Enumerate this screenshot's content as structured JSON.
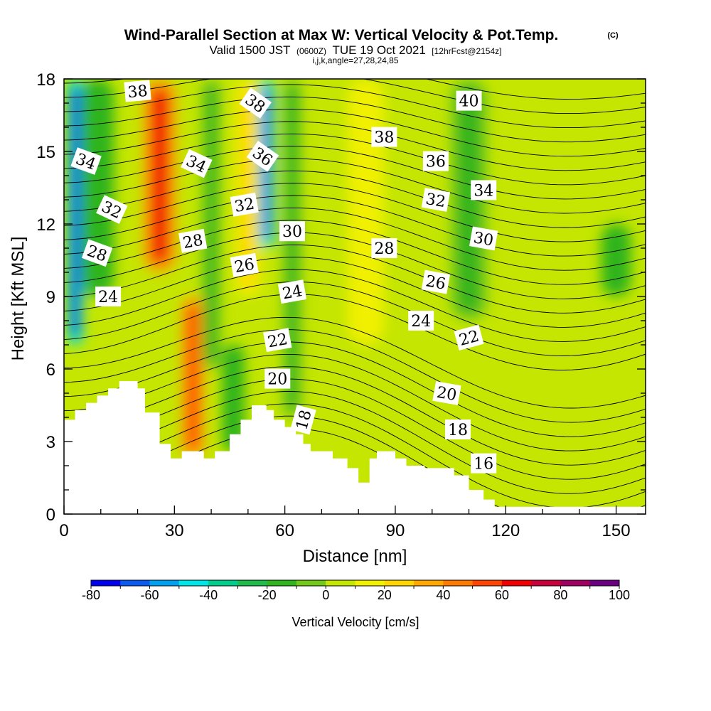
{
  "chart_data": {
    "type": "heatmap",
    "title": "Wind-Parallel Section at Max W: Vertical Velocity & Pot.Temp.",
    "title_mark": "(C)",
    "subtitle": {
      "prefix": "Valid 1500 JST",
      "zulu": "(0600Z)",
      "date": "TUE 19 Oct 2021",
      "fcst": "[12hrFcst@2154z]"
    },
    "subtitle2": "i,j,k,angle=27,28,24,85",
    "xlabel": "Distance [nm]",
    "ylabel": "Height [Kft MSL]",
    "xlim": [
      0,
      158
    ],
    "ylim": [
      0,
      18
    ],
    "x_ticks": [
      "0",
      "30",
      "60",
      "90",
      "120",
      "150"
    ],
    "y_ticks": [
      "0",
      "3",
      "6",
      "9",
      "12",
      "15",
      "18"
    ],
    "colorbar": {
      "label": "Vertical Velocity [cm/s]",
      "ticks": [
        "-80",
        "-60",
        "-40",
        "-20",
        "0",
        "20",
        "40",
        "60",
        "80",
        "100"
      ],
      "colors": [
        "#0000ee",
        "#0a5af0",
        "#00a0f0",
        "#00e6e6",
        "#00cc8c",
        "#1fbc4c",
        "#2fb41e",
        "#73c81a",
        "#c4e600",
        "#f0f000",
        "#ffd700",
        "#ffa800",
        "#ff7a00",
        "#ff4500",
        "#f00000",
        "#c8003c",
        "#a00060",
        "#6a0080"
      ]
    },
    "background_velocity": 2,
    "terrain_kft": [
      [
        0,
        3.9
      ],
      [
        3,
        3.9
      ],
      [
        3,
        4.3
      ],
      [
        6,
        4.3
      ],
      [
        6,
        4.6
      ],
      [
        9,
        4.6
      ],
      [
        9,
        4.9
      ],
      [
        12,
        4.9
      ],
      [
        12,
        5.2
      ],
      [
        15,
        5.2
      ],
      [
        15,
        5.5
      ],
      [
        20,
        5.5
      ],
      [
        20,
        5.2
      ],
      [
        22,
        5.2
      ],
      [
        22,
        4.2
      ],
      [
        26,
        4.2
      ],
      [
        26,
        2.9
      ],
      [
        29,
        2.9
      ],
      [
        29,
        2.3
      ],
      [
        32,
        2.3
      ],
      [
        32,
        2.6
      ],
      [
        38,
        2.6
      ],
      [
        38,
        2.3
      ],
      [
        41,
        2.3
      ],
      [
        41,
        2.6
      ],
      [
        45,
        2.6
      ],
      [
        45,
        3.3
      ],
      [
        48,
        3.3
      ],
      [
        48,
        3.9
      ],
      [
        51,
        3.9
      ],
      [
        51,
        4.5
      ],
      [
        55,
        4.5
      ],
      [
        55,
        4.3
      ],
      [
        57,
        4.3
      ],
      [
        57,
        3.9
      ],
      [
        60,
        3.9
      ],
      [
        60,
        3.6
      ],
      [
        63,
        3.6
      ],
      [
        63,
        3.3
      ],
      [
        65,
        3.3
      ],
      [
        65,
        2.9
      ],
      [
        67,
        2.9
      ],
      [
        67,
        2.6
      ],
      [
        73,
        2.6
      ],
      [
        73,
        2.3
      ],
      [
        77,
        2.3
      ],
      [
        77,
        1.9
      ],
      [
        80,
        1.9
      ],
      [
        80,
        1.3
      ],
      [
        83,
        1.3
      ],
      [
        83,
        2.3
      ],
      [
        85,
        2.3
      ],
      [
        85,
        2.6
      ],
      [
        90,
        2.6
      ],
      [
        90,
        2.3
      ],
      [
        93,
        2.3
      ],
      [
        93,
        2.0
      ],
      [
        98,
        2.0
      ],
      [
        98,
        1.9
      ],
      [
        106,
        1.9
      ],
      [
        106,
        1.6
      ],
      [
        110,
        1.6
      ],
      [
        110,
        1.0
      ],
      [
        114,
        1.0
      ],
      [
        114,
        0.6
      ],
      [
        117,
        0.6
      ],
      [
        117,
        0.3
      ],
      [
        158,
        0.3
      ]
    ],
    "velocity_features": [
      {
        "x": 3,
        "y0": 7,
        "y1": 18,
        "w": 4,
        "value": -75
      },
      {
        "x": 9,
        "y0": 9,
        "y1": 18,
        "w": 9,
        "value": -18
      },
      {
        "x": 26,
        "y0": 10,
        "y1": 18,
        "w": 9,
        "value": 62
      },
      {
        "x": 35,
        "y0": 2.3,
        "y1": 9,
        "w": 6,
        "value": 55
      },
      {
        "x": 40,
        "y0": 6,
        "y1": 18,
        "w": 5,
        "value": -15
      },
      {
        "x": 46,
        "y0": 2.6,
        "y1": 7,
        "w": 6,
        "value": -18
      },
      {
        "x": 50,
        "y0": 9,
        "y1": 18,
        "w": 7,
        "value": 22
      },
      {
        "x": 55,
        "y0": 11,
        "y1": 18,
        "w": 4,
        "value": -70
      },
      {
        "x": 62,
        "y0": 4,
        "y1": 18,
        "w": 5,
        "value": -12
      },
      {
        "x": 82,
        "y0": 7,
        "y1": 18,
        "w": 10,
        "value": 18
      },
      {
        "x": 110,
        "y0": 8,
        "y1": 18,
        "w": 10,
        "value": -14
      },
      {
        "x": 150,
        "y0": 9,
        "y1": 12,
        "w": 8,
        "value": -18
      }
    ],
    "isentrope_labels": [
      {
        "text": "38",
        "x": 20,
        "y": 17.5,
        "angle": -5
      },
      {
        "text": "38",
        "x": 52,
        "y": 17.0,
        "angle": 35
      },
      {
        "text": "40",
        "x": 110,
        "y": 17.1,
        "angle": 0
      },
      {
        "text": "38",
        "x": 87,
        "y": 15.6,
        "angle": 0
      },
      {
        "text": "34",
        "x": 6,
        "y": 14.6,
        "angle": 20
      },
      {
        "text": "34",
        "x": 36,
        "y": 14.5,
        "angle": 25
      },
      {
        "text": "36",
        "x": 54,
        "y": 14.8,
        "angle": 35
      },
      {
        "text": "36",
        "x": 101,
        "y": 14.6,
        "angle": 0
      },
      {
        "text": "34",
        "x": 114,
        "y": 13.4,
        "angle": 0
      },
      {
        "text": "32",
        "x": 13,
        "y": 12.6,
        "angle": 25
      },
      {
        "text": "32",
        "x": 49,
        "y": 12.8,
        "angle": -10
      },
      {
        "text": "32",
        "x": 101,
        "y": 13.0,
        "angle": 10
      },
      {
        "text": "30",
        "x": 62,
        "y": 11.7,
        "angle": 0
      },
      {
        "text": "30",
        "x": 114,
        "y": 11.4,
        "angle": 10
      },
      {
        "text": "28",
        "x": 35,
        "y": 11.3,
        "angle": -10
      },
      {
        "text": "28",
        "x": 87,
        "y": 11.0,
        "angle": 0
      },
      {
        "text": "28",
        "x": 9,
        "y": 10.8,
        "angle": 20
      },
      {
        "text": "26",
        "x": 49,
        "y": 10.3,
        "angle": -10
      },
      {
        "text": "26",
        "x": 101,
        "y": 9.6,
        "angle": 10
      },
      {
        "text": "24",
        "x": 12,
        "y": 9.0,
        "angle": 0
      },
      {
        "text": "24",
        "x": 62,
        "y": 9.2,
        "angle": -10
      },
      {
        "text": "24",
        "x": 97,
        "y": 8.0,
        "angle": 0
      },
      {
        "text": "22",
        "x": 110,
        "y": 7.3,
        "angle": -15
      },
      {
        "text": "22",
        "x": 58,
        "y": 7.2,
        "angle": -10
      },
      {
        "text": "20",
        "x": 58,
        "y": 5.6,
        "angle": 0
      },
      {
        "text": "20",
        "x": 104,
        "y": 5.0,
        "angle": 10
      },
      {
        "text": "18",
        "x": 65,
        "y": 3.9,
        "angle": -75
      },
      {
        "text": "18",
        "x": 107,
        "y": 3.5,
        "angle": 0
      },
      {
        "text": "16",
        "x": 114,
        "y": 2.1,
        "angle": 0
      }
    ]
  }
}
